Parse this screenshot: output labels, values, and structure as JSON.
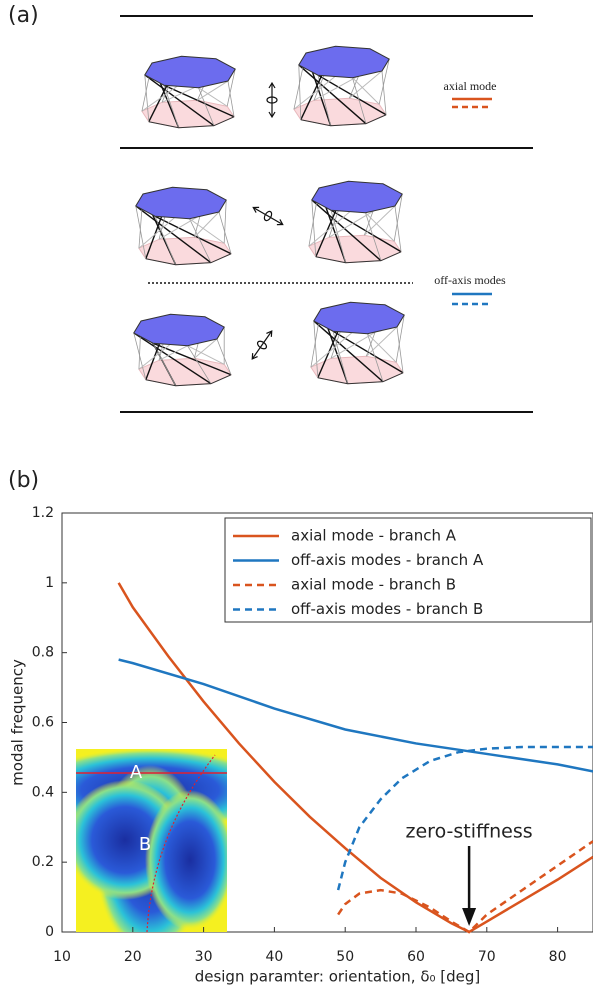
{
  "panel_a": {
    "label": "(a)",
    "legend": [
      "axial mode",
      "off-axis modes"
    ]
  },
  "panel_b_label": "(b)",
  "chart_data": {
    "type": "line",
    "xlabel": "design paramter: orientation, δ₀ [deg]",
    "ylabel": "modal frequency",
    "xlim": [
      10,
      85
    ],
    "ylim": [
      0,
      1.2
    ],
    "xticks": [
      10,
      20,
      30,
      40,
      50,
      60,
      70,
      80
    ],
    "yticks": [
      0,
      0.2,
      0.4,
      0.6,
      0.8,
      1,
      1.2
    ],
    "legend": "upper right",
    "series": [
      {
        "name": "axial mode - branch A",
        "color": "#d9541e",
        "dashed": false,
        "x": [
          18,
          20,
          25,
          30,
          35,
          40,
          45,
          50,
          55,
          60,
          65,
          67.5,
          70,
          75,
          80,
          85
        ],
        "values": [
          1.0,
          0.93,
          0.79,
          0.66,
          0.54,
          0.43,
          0.33,
          0.24,
          0.155,
          0.085,
          0.025,
          0,
          0.03,
          0.09,
          0.15,
          0.215
        ]
      },
      {
        "name": "off-axis modes - branch A",
        "color": "#1f77c0",
        "dashed": false,
        "x": [
          18,
          20,
          30,
          40,
          50,
          60,
          70,
          80,
          85
        ],
        "values": [
          0.78,
          0.77,
          0.71,
          0.64,
          0.58,
          0.54,
          0.51,
          0.48,
          0.46
        ]
      },
      {
        "name": "axial mode - branch B",
        "color": "#d9541e",
        "dashed": true,
        "x": [
          49,
          50,
          52,
          55,
          58,
          62,
          65,
          67.5,
          70,
          75,
          80,
          85
        ],
        "values": [
          0.05,
          0.08,
          0.11,
          0.12,
          0.11,
          0.07,
          0.03,
          0,
          0.05,
          0.12,
          0.19,
          0.26
        ]
      },
      {
        "name": "off-axis modes - branch B",
        "color": "#1f77c0",
        "dashed": true,
        "x": [
          49,
          50,
          52,
          55,
          58,
          62,
          66,
          70,
          75,
          80,
          85
        ],
        "values": [
          0.12,
          0.2,
          0.3,
          0.38,
          0.44,
          0.49,
          0.515,
          0.525,
          0.53,
          0.53,
          0.53
        ]
      }
    ],
    "annotation": {
      "text": "zero-stiffness",
      "x": 67.5,
      "y": 0
    },
    "inset_labels": [
      "A",
      "B"
    ]
  }
}
